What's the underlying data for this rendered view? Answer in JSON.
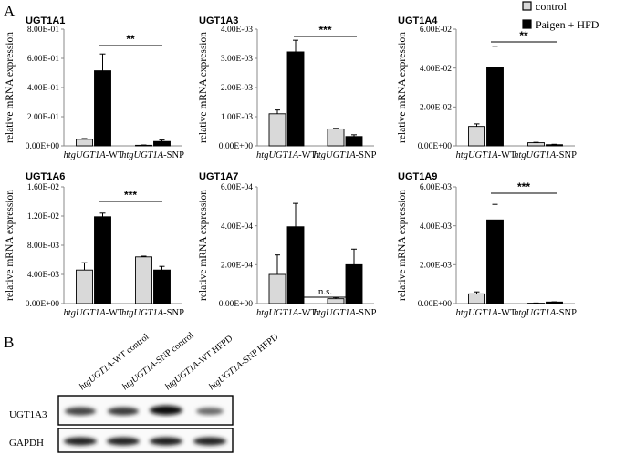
{
  "figure": {
    "panel_a": "A",
    "panel_b": "B"
  },
  "legend": {
    "items": [
      {
        "label": "control",
        "color": "#d9d9d9"
      },
      {
        "label": "Paigen + HFD",
        "color": "#000000"
      }
    ]
  },
  "chart_data": [
    {
      "type": "bar",
      "title": "UGT1A1",
      "ylabel": "relative mRNA expression",
      "yticks": [
        "0.00E+00",
        "2.00E-01",
        "4.00E-01",
        "6.00E-01",
        "8.00E-01"
      ],
      "ylim": [
        0,
        0.8
      ],
      "categories": [
        {
          "italic": "htgUGT1A",
          "suffix": "-WT"
        },
        {
          "italic": "htgUGT1A",
          "suffix": "-SNP"
        }
      ],
      "series": [
        {
          "name": "control",
          "values": [
            0.045,
            0.004
          ],
          "errors": [
            0.005,
            0.002
          ]
        },
        {
          "name": "Paigen + HFD",
          "values": [
            0.515,
            0.03
          ],
          "errors": [
            0.115,
            0.01
          ]
        }
      ],
      "significance": "**"
    },
    {
      "type": "bar",
      "title": "UGT1A3",
      "ylabel": "relative mRNA expression",
      "yticks": [
        "0.00E+00",
        "1.00E-03",
        "2.00E-03",
        "3.00E-03",
        "4.00E-03"
      ],
      "ylim": [
        0,
        0.004
      ],
      "categories": [
        {
          "italic": "htgUGT1A",
          "suffix": "-WT"
        },
        {
          "italic": "htgUGT1A",
          "suffix": "-SNP"
        }
      ],
      "series": [
        {
          "name": "control",
          "values": [
            0.0011,
            0.00058
          ],
          "errors": [
            0.00013,
            2e-05
          ]
        },
        {
          "name": "Paigen + HFD",
          "values": [
            0.00322,
            0.00032
          ],
          "errors": [
            0.0004,
            6e-05
          ]
        }
      ],
      "significance": "***"
    },
    {
      "type": "bar",
      "title": "UGT1A4",
      "ylabel": "relative mRNA expression",
      "yticks": [
        "0.00E+00",
        "2.00E-02",
        "4.00E-02",
        "6.00E-02"
      ],
      "ylim": [
        0,
        0.06
      ],
      "categories": [
        {
          "italic": "htgUGT1A",
          "suffix": "-WT"
        },
        {
          "italic": "htgUGT1A",
          "suffix": "-SNP"
        }
      ],
      "series": [
        {
          "name": "control",
          "values": [
            0.01,
            0.0016
          ],
          "errors": [
            0.0013,
            0.0002
          ]
        },
        {
          "name": "Paigen + HFD",
          "values": [
            0.0405,
            0.0006
          ],
          "errors": [
            0.0107,
            0.0002
          ]
        }
      ],
      "significance": "**"
    },
    {
      "type": "bar",
      "title": "UGT1A6",
      "ylabel": "relative mRNA expression",
      "yticks": [
        "0.00E+00",
        "4.00E-03",
        "8.00E-03",
        "1.20E-02",
        "1.60E-02"
      ],
      "ylim": [
        0,
        0.016
      ],
      "categories": [
        {
          "italic": "htgUGT1A",
          "suffix": "-WT"
        },
        {
          "italic": "htgUGT1A",
          "suffix": "-SNP"
        }
      ],
      "series": [
        {
          "name": "control",
          "values": [
            0.0046,
            0.0064
          ],
          "errors": [
            0.001,
            0.0001
          ]
        },
        {
          "name": "Paigen + HFD",
          "values": [
            0.0119,
            0.0046
          ],
          "errors": [
            0.0005,
            0.0005
          ]
        }
      ],
      "significance": "***"
    },
    {
      "type": "bar",
      "title": "UGT1A7",
      "ylabel": "relative mRNA expression",
      "yticks": [
        "0.00E+00",
        "2.00E-04",
        "4.00E-04",
        "6.00E-04"
      ],
      "ylim": [
        0,
        0.0006
      ],
      "categories": [
        {
          "italic": "htgUGT1A",
          "suffix": "-WT"
        },
        {
          "italic": "htgUGT1A",
          "suffix": "-SNP"
        }
      ],
      "series": [
        {
          "name": "control",
          "values": [
            0.00015,
            2.5e-05
          ],
          "errors": [
            0.0001,
            6e-06
          ]
        },
        {
          "name": "Paigen + HFD",
          "values": [
            0.000395,
            0.0002
          ],
          "errors": [
            0.00012,
            8e-05
          ]
        }
      ],
      "significance": "n.s."
    },
    {
      "type": "bar",
      "title": "UGT1A9",
      "ylabel": "relative mRNA expression",
      "yticks": [
        "0.00E+00",
        "2.00E-03",
        "4.00E-03",
        "6.00E-03"
      ],
      "ylim": [
        0,
        0.006
      ],
      "categories": [
        {
          "italic": "htgUGT1A",
          "suffix": "-WT"
        },
        {
          "italic": "htgUGT1A",
          "suffix": "-SNP"
        }
      ],
      "series": [
        {
          "name": "control",
          "values": [
            0.0005,
            2e-05
          ],
          "errors": [
            0.0001,
            1e-05
          ]
        },
        {
          "name": "Paigen + HFD",
          "values": [
            0.0043,
            8e-05
          ],
          "errors": [
            0.0008,
            1e-05
          ]
        }
      ],
      "significance": "***"
    }
  ],
  "blot": {
    "lanes": [
      {
        "italic": "htgUGT1A",
        "suffix": "-WT control"
      },
      {
        "italic": "htgUGT1A",
        "suffix": "-SNP control"
      },
      {
        "italic": "htgUGT1A",
        "suffix": "-WT HFPD"
      },
      {
        "italic": "htgUGT1A",
        "suffix": "-SNP HFPD"
      }
    ],
    "rows": [
      "UGT1A3",
      "GAPDH"
    ]
  }
}
